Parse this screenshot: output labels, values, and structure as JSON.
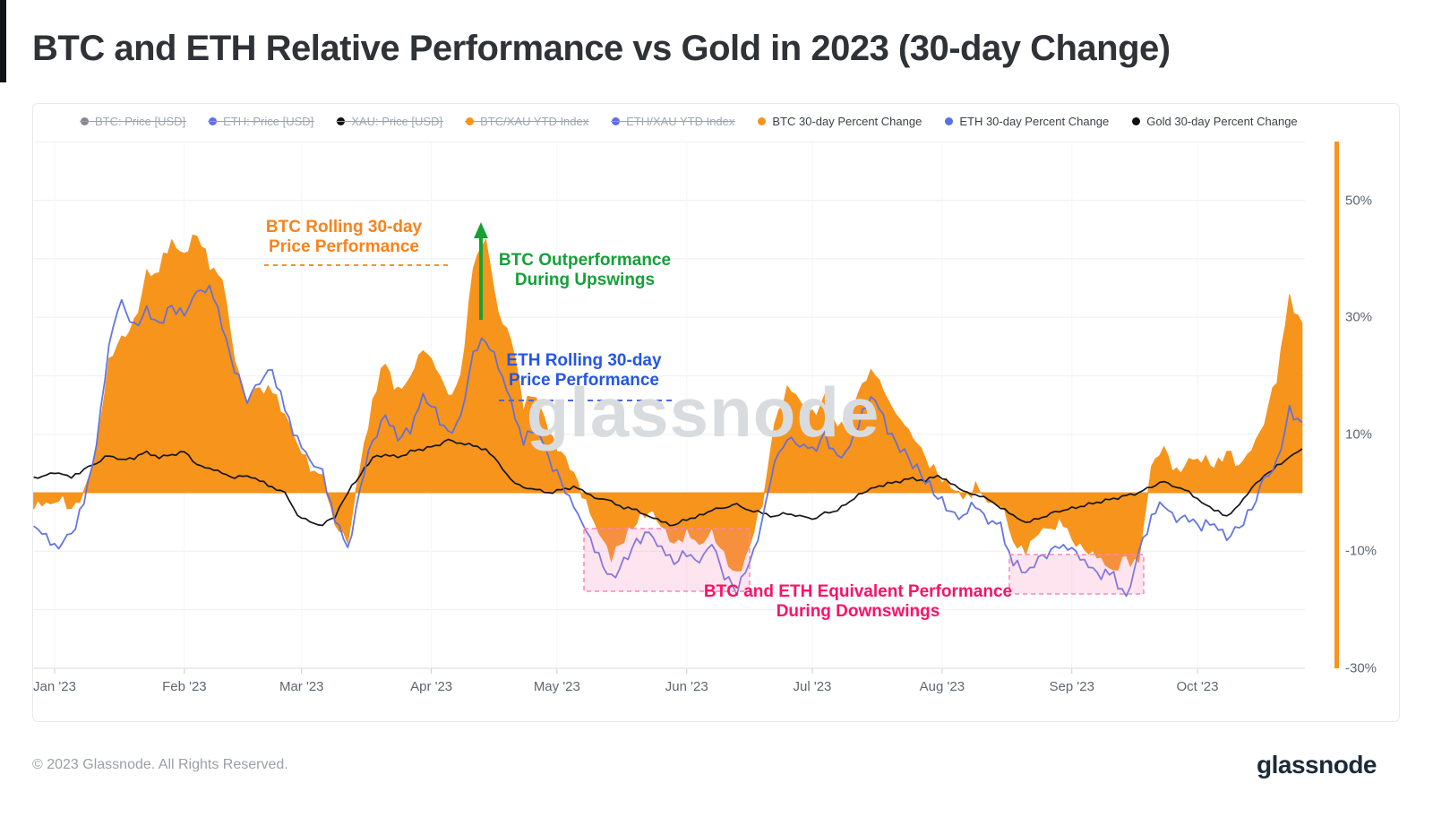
{
  "page": {
    "title": "BTC and ETH Relative Performance vs Gold in 2023 (30-day Change)",
    "watermark": "glassnode",
    "footer_left": "© 2023 Glassnode. All Rights Reserved.",
    "footer_logo": "glassnode"
  },
  "legend": {
    "disabled": [
      {
        "label": "BTC: Price [USD]",
        "color": "#85898e"
      },
      {
        "label": "ETH: Price [USD]",
        "color": "#5c6fe3"
      },
      {
        "label": "XAU: Price [USD]",
        "color": "#101114"
      },
      {
        "label": "BTC/XAU YTD Index",
        "color": "#f7941c"
      },
      {
        "label": "ETH/XAU YTD Index",
        "color": "#5c6fe3"
      }
    ],
    "active": [
      {
        "label": "BTC 30-day Percent Change",
        "color": "#f7941c"
      },
      {
        "label": "ETH 30-day Percent Change",
        "color": "#5c6fe3"
      },
      {
        "label": "Gold 30-day Percent Change",
        "color": "#101114"
      }
    ]
  },
  "annotations": {
    "btc_rolling": {
      "line1": "BTC Rolling 30-day",
      "line2": "Price Performance",
      "color": "#f8831d"
    },
    "btc_outperf": {
      "line1": "BTC Outperformance",
      "line2": "During Upswings",
      "color": "#15a038"
    },
    "eth_rolling": {
      "line1": "ETH Rolling 30-day",
      "line2": "Price Performance",
      "color": "#2356e8"
    },
    "equiv_downswing": {
      "line1": "BTC and ETH Equivalent Performance",
      "line2": "During Downswings",
      "color": "#fb1168"
    }
  },
  "chart_data": {
    "type": "area",
    "title": "BTC and ETH Relative Performance vs Gold in 2023 (30-day Change)",
    "unit": "%",
    "legend_position": "top",
    "grid": true,
    "x_axis": {
      "start_label": "late Dec 2022",
      "months": [
        {
          "label": "Jan '23",
          "day": 5
        },
        {
          "label": "Feb '23",
          "day": 36
        },
        {
          "label": "Mar '23",
          "day": 64
        },
        {
          "label": "Apr '23",
          "day": 95
        },
        {
          "label": "May '23",
          "day": 125
        },
        {
          "label": "Jun '23",
          "day": 156
        },
        {
          "label": "Jul '23",
          "day": 186
        },
        {
          "label": "Aug '23",
          "day": 217
        },
        {
          "label": "Sep '23",
          "day": 248
        },
        {
          "label": "Oct '23",
          "day": 278
        }
      ]
    },
    "y_axis": {
      "range": [
        -30,
        60
      ],
      "gridline_step": 10,
      "ticks": [
        {
          "value": 50,
          "label": "50%"
        },
        {
          "value": 30,
          "label": "30%"
        },
        {
          "value": 10,
          "label": "10%"
        },
        {
          "value": -10,
          "label": "-10%"
        },
        {
          "value": -30,
          "label": "-30%"
        }
      ]
    },
    "sample_interval_days": 3,
    "series": [
      {
        "name": "BTC 30-day Percent Change",
        "type": "area",
        "color": "#f7941c",
        "values": [
          -1.5,
          -2.5,
          -1,
          -3,
          0.5,
          7,
          22,
          26,
          29,
          37,
          38,
          43,
          41,
          44,
          39,
          37,
          22,
          16,
          18,
          17,
          13,
          8,
          4,
          2,
          -5,
          -8,
          4,
          16,
          22,
          17,
          19,
          25,
          22,
          16,
          20,
          38,
          44,
          30,
          26,
          15,
          17,
          10,
          7,
          4,
          -2,
          -7,
          -11,
          -8,
          -5,
          -3,
          -6,
          -9,
          -7,
          -9,
          -6,
          -11,
          -14,
          -9,
          -2,
          12,
          18,
          15,
          13,
          16,
          11,
          12,
          19,
          21,
          16,
          13,
          10,
          6,
          3,
          0.5,
          -1,
          1,
          -1,
          -2,
          -8,
          -10,
          -7,
          -6,
          -5,
          -8,
          -10,
          -12,
          -13,
          -11,
          -12,
          4,
          8,
          3,
          5,
          6,
          4,
          7,
          5,
          8,
          12,
          20,
          33,
          29
        ]
      },
      {
        "name": "ETH 30-day Percent Change",
        "type": "line",
        "color": "#5c6fe3",
        "values": [
          -6,
          -8,
          -9,
          -7,
          -2,
          8,
          26,
          33,
          28,
          31,
          29,
          32,
          30,
          34,
          35,
          29,
          21,
          16,
          19,
          21,
          14,
          9,
          5,
          3,
          -4,
          -10,
          1,
          9,
          13,
          9,
          11,
          16,
          14,
          10,
          13,
          24,
          26,
          22,
          15,
          9,
          11,
          6,
          2,
          -2,
          -6,
          -11,
          -15,
          -12,
          -8,
          -7,
          -9,
          -12,
          -10,
          -12,
          -9,
          -14,
          -17,
          -12,
          -5,
          5,
          10,
          8,
          7,
          10,
          6,
          8,
          14,
          16,
          11,
          8,
          5,
          2,
          -1,
          -3,
          -4,
          -2,
          -5,
          -6,
          -12,
          -14,
          -11,
          -10,
          -9,
          -11,
          -12,
          -14,
          -14,
          -18,
          -10,
          -4,
          -2,
          -5,
          -4,
          -6,
          -5,
          -8,
          -6,
          -3,
          2,
          5,
          14,
          12
        ]
      },
      {
        "name": "Gold 30-day Percent Change",
        "type": "line",
        "color": "#16161d",
        "values": [
          2.5,
          3,
          3.5,
          2.5,
          4,
          5,
          6.5,
          5.5,
          6,
          7,
          6,
          6.5,
          7,
          5,
          4,
          3.5,
          2.5,
          3,
          2,
          1,
          0,
          -4,
          -5,
          -5.5,
          -4,
          0,
          3,
          6,
          6.5,
          6,
          7,
          7.5,
          8,
          9,
          8.5,
          8,
          7.5,
          5,
          2,
          1,
          0.5,
          0,
          0.5,
          1,
          0,
          -1,
          -1.5,
          -2.5,
          -3,
          -4,
          -5,
          -5.5,
          -4.5,
          -4,
          -3,
          -2.5,
          -2,
          -3,
          -3.5,
          -4,
          -3.5,
          -4,
          -4.5,
          -3.5,
          -3,
          -1.5,
          0,
          1,
          1.5,
          2,
          2.5,
          2,
          3,
          1.5,
          0.5,
          -0.5,
          -1,
          -2.5,
          -4,
          -5,
          -4.5,
          -3.5,
          -3,
          -2.5,
          -2,
          -1.5,
          -1,
          -0.5,
          0,
          1,
          2,
          1,
          0,
          -1.5,
          -3,
          -4,
          -2,
          1,
          3,
          4.5,
          6,
          7.5
        ]
      }
    ],
    "highlight_regions": [
      {
        "label": "downswing May-Jun",
        "color": "#fa86b5"
      },
      {
        "label": "downswing Aug-Sep",
        "color": "#fa86b5"
      }
    ]
  }
}
